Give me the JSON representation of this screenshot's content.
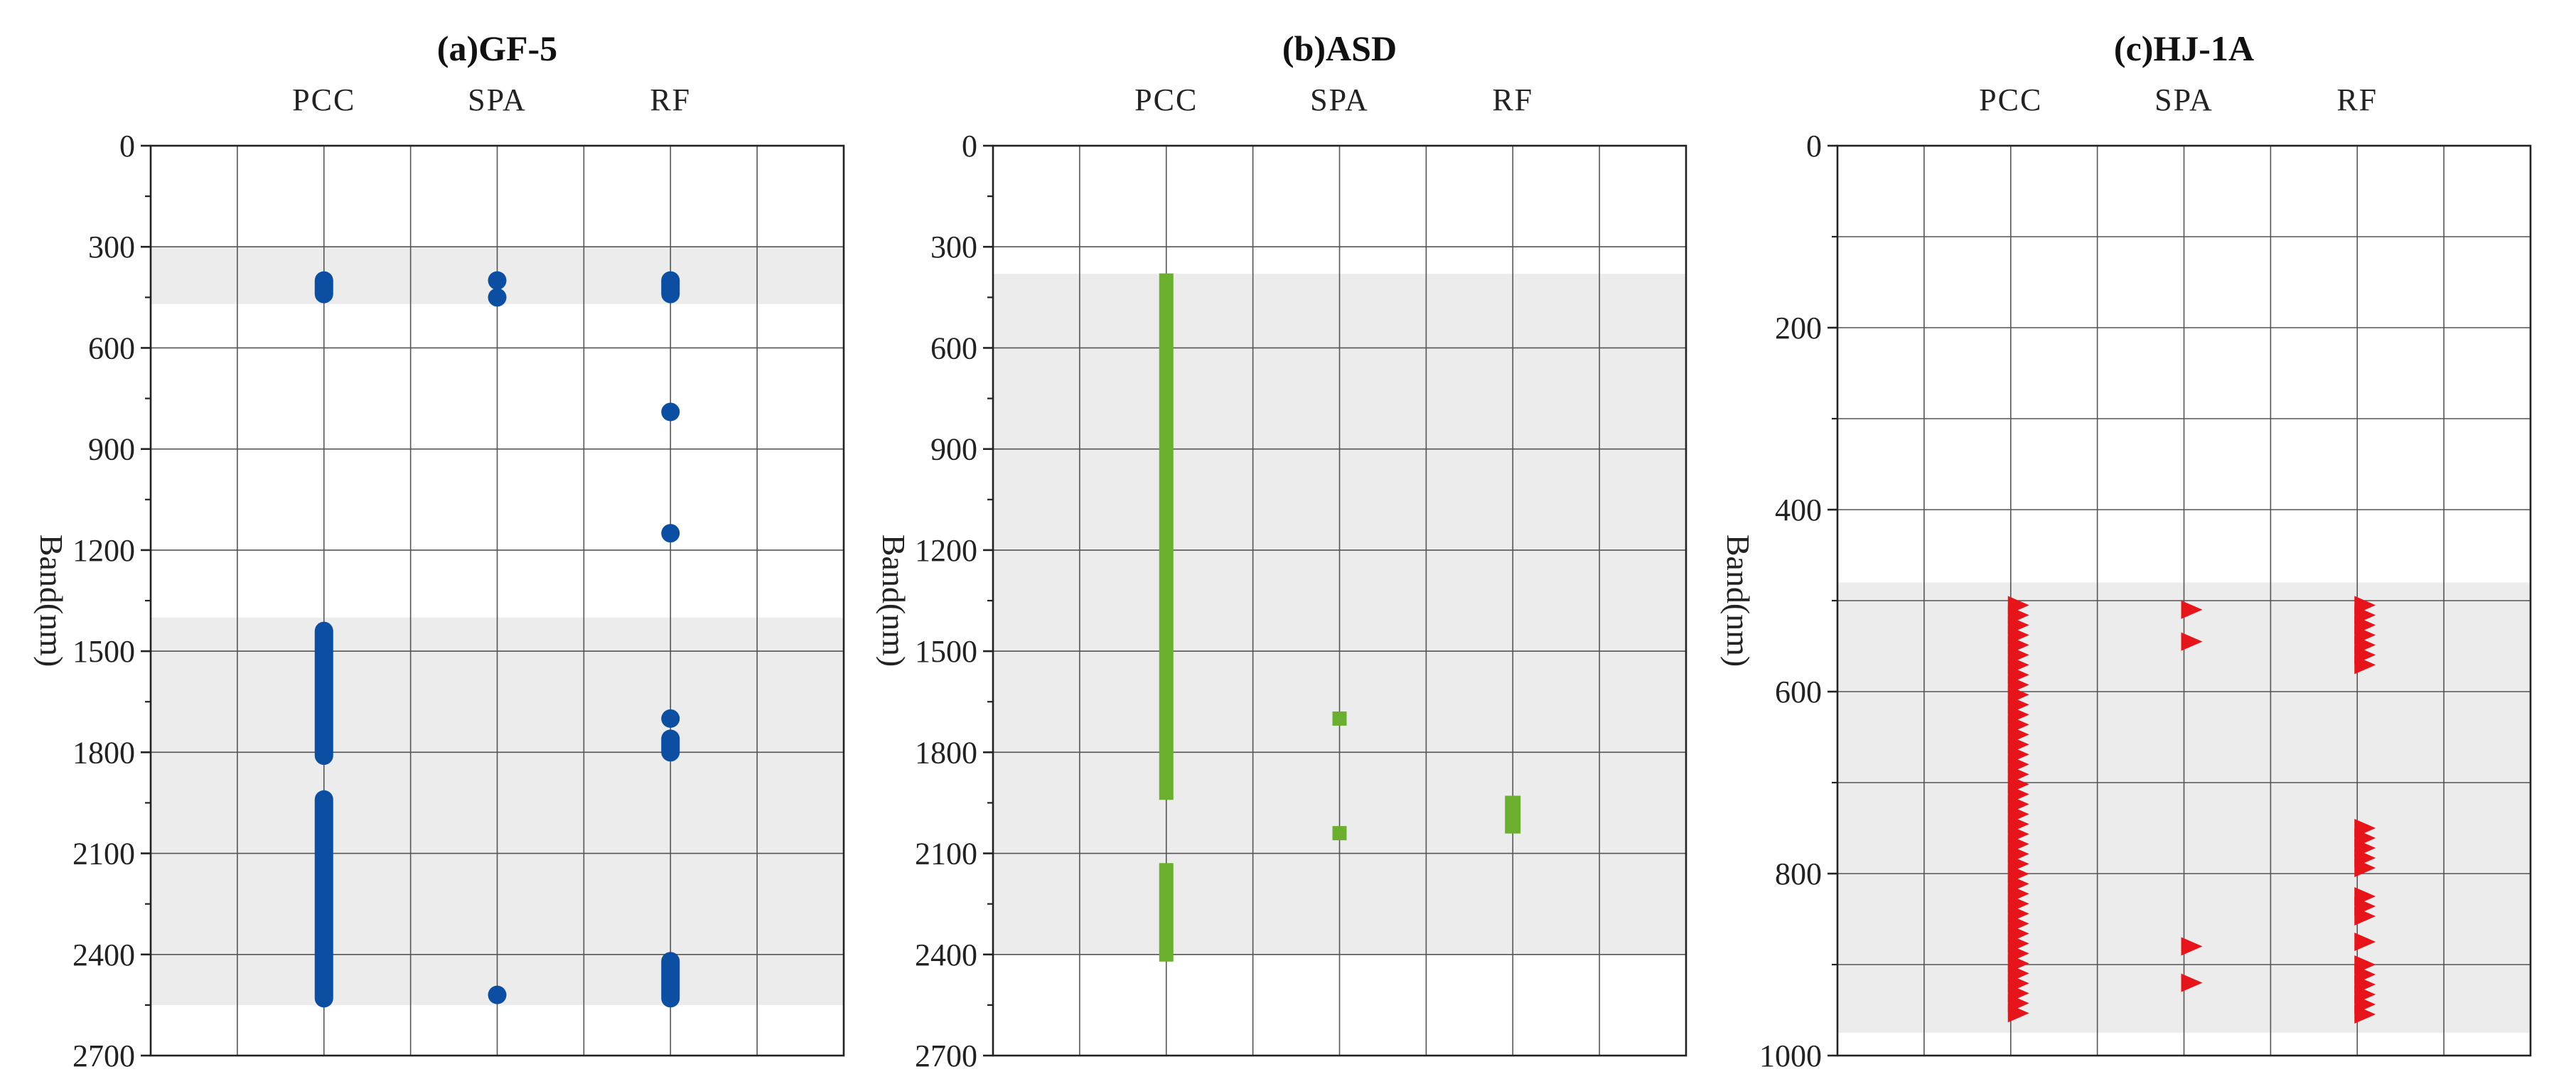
{
  "chart_data": [
    {
      "type": "scatter",
      "title": "(a)GF-5",
      "ylabel": "Band(nm)",
      "categories": [
        "PCC",
        "SPA",
        "RF"
      ],
      "ylim": [
        0,
        2700
      ],
      "yticks": [
        0,
        300,
        600,
        900,
        1200,
        1500,
        1800,
        2100,
        2400,
        2700
      ],
      "y_inverted": true,
      "grid": true,
      "marker": "circle",
      "color": "#0b4ea2",
      "shaded_ranges": [
        [
          300,
          470
        ],
        [
          1400,
          2550
        ]
      ],
      "series": [
        {
          "category": "PCC",
          "points": [
            [
              400,
              440
            ],
            [
              1440,
              1810
            ],
            [
              1940,
              2530
            ]
          ]
        },
        {
          "category": "SPA",
          "points": [
            [
              400,
              400
            ],
            [
              450,
              450
            ],
            [
              2520,
              2520
            ]
          ]
        },
        {
          "category": "RF",
          "points": [
            [
              400,
              440
            ],
            [
              790,
              790
            ],
            [
              1150,
              1150
            ],
            [
              1700,
              1700
            ],
            [
              1760,
              1800
            ],
            [
              2420,
              2530
            ]
          ]
        }
      ]
    },
    {
      "type": "scatter",
      "title": "(b)ASD",
      "ylabel": "Band(nm)",
      "categories": [
        "PCC",
        "SPA",
        "RF"
      ],
      "ylim": [
        0,
        2700
      ],
      "yticks": [
        0,
        300,
        600,
        900,
        1200,
        1500,
        1800,
        2100,
        2400,
        2700
      ],
      "y_inverted": true,
      "grid": true,
      "marker": "square",
      "color": "#6ab02e",
      "shaded_ranges": [
        [
          380,
          2400
        ]
      ],
      "series": [
        {
          "category": "PCC",
          "points": [
            [
              400,
              1920
            ],
            [
              2150,
              2400
            ]
          ]
        },
        {
          "category": "SPA",
          "points": [
            [
              1700,
              1700
            ],
            [
              2040,
              2040
            ]
          ]
        },
        {
          "category": "RF",
          "points": [
            [
              1950,
              2020
            ]
          ]
        }
      ]
    },
    {
      "type": "scatter",
      "title": "(c)HJ-1A",
      "ylabel": "Band(nm)",
      "categories": [
        "PCC",
        "SPA",
        "RF"
      ],
      "ylim": [
        0,
        1000
      ],
      "yticks": [
        0,
        200,
        400,
        600,
        800,
        1000
      ],
      "y_inverted": true,
      "grid": true,
      "marker": "triangle-right",
      "color": "#e8141c",
      "shaded_ranges": [
        [
          480,
          975
        ]
      ],
      "series": [
        {
          "category": "PCC",
          "points": [
            [
              505,
              960
            ]
          ]
        },
        {
          "category": "SPA",
          "points": [
            [
              510,
              510
            ],
            [
              545,
              545
            ],
            [
              880,
              880
            ],
            [
              920,
              920
            ]
          ]
        },
        {
          "category": "RF",
          "points": [
            [
              505,
              580
            ],
            [
              750,
              800
            ],
            [
              825,
              850
            ],
            [
              875,
              875
            ],
            [
              900,
              960
            ]
          ]
        }
      ]
    }
  ]
}
